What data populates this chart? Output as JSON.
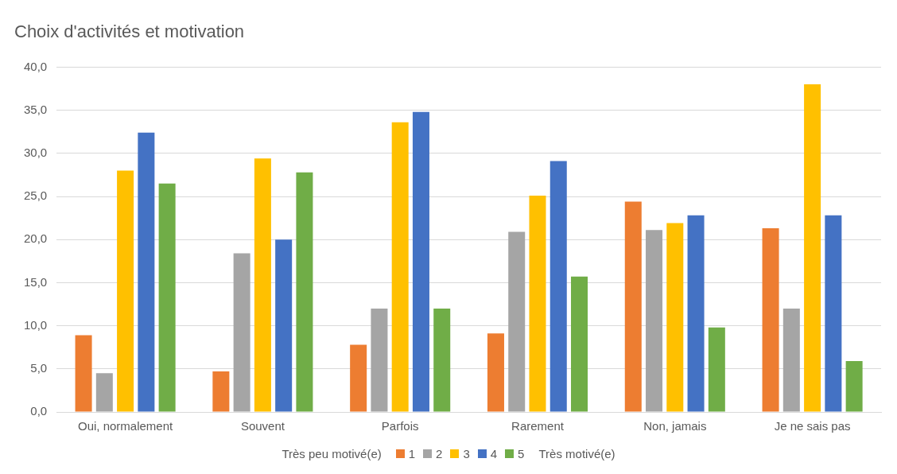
{
  "chart_data": {
    "type": "bar",
    "title": "Choix d'activités et motivation",
    "categories": [
      "Oui, normalement",
      "Souvent",
      "Parfois",
      "Rarement",
      "Non, jamais",
      "Je ne sais pas"
    ],
    "series": [
      {
        "name": "1",
        "color": "#ed7d31",
        "values": [
          8.9,
          4.7,
          7.8,
          9.1,
          24.4,
          21.3
        ]
      },
      {
        "name": "2",
        "color": "#a5a5a5",
        "values": [
          4.5,
          18.4,
          12.0,
          20.9,
          21.1,
          12.0
        ]
      },
      {
        "name": "3",
        "color": "#ffc000",
        "values": [
          28.0,
          29.4,
          33.6,
          25.1,
          21.9,
          38.0
        ]
      },
      {
        "name": "4",
        "color": "#4472c4",
        "values": [
          32.4,
          20.0,
          34.8,
          29.1,
          22.8,
          22.8
        ]
      },
      {
        "name": "5",
        "color": "#70ad47",
        "values": [
          26.5,
          27.8,
          12.0,
          15.7,
          9.8,
          5.9
        ]
      }
    ],
    "ylim": [
      0,
      40
    ],
    "yticks": [
      {
        "value": 0,
        "label": "0,0"
      },
      {
        "value": 5,
        "label": "5,0"
      },
      {
        "value": 10,
        "label": "10,0"
      },
      {
        "value": 15,
        "label": "15,0"
      },
      {
        "value": 20,
        "label": "20,0"
      },
      {
        "value": 25,
        "label": "25,0"
      },
      {
        "value": 30,
        "label": "30,0"
      },
      {
        "value": 35,
        "label": "35,0"
      },
      {
        "value": 40,
        "label": "40,0"
      }
    ],
    "grid": "y",
    "legend": "bottom",
    "legend_title": "Très peu motivé(e)",
    "annotations": [
      "Très motivé(e)"
    ]
  }
}
